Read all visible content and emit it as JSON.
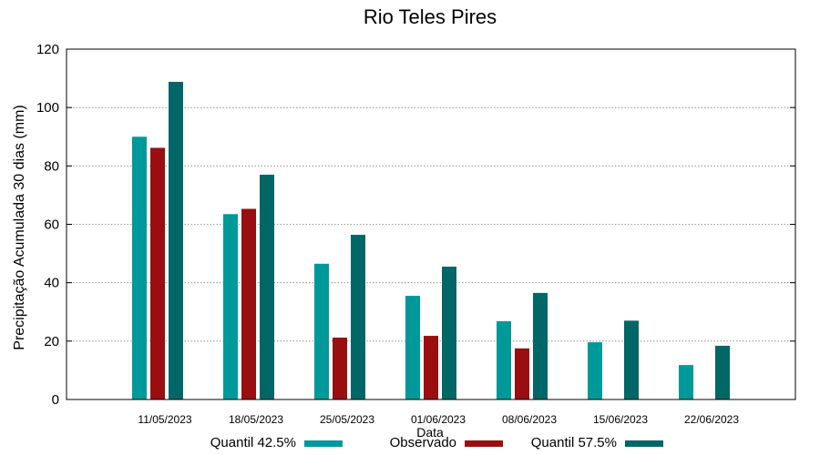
{
  "chart_data": {
    "type": "bar",
    "title": "Rio Teles Pires",
    "xlabel": "Data",
    "ylabel": "Precipitação Acumulada 30 dias (mm)",
    "ylim": [
      0,
      120
    ],
    "yticks": [
      0,
      20,
      40,
      60,
      80,
      100,
      120
    ],
    "grid": true,
    "legend_position": "bottom",
    "categories": [
      "11/05/2023",
      "18/05/2023",
      "25/05/2023",
      "01/06/2023",
      "08/06/2023",
      "15/06/2023",
      "22/06/2023"
    ],
    "series": [
      {
        "name": "Quantil 42.5%",
        "color": "#009999",
        "values": [
          90,
          63.5,
          46.5,
          35.5,
          26.8,
          19.6,
          11.8
        ]
      },
      {
        "name": "Observado",
        "color": "#990f0f",
        "values": [
          86.2,
          65.3,
          21.2,
          21.8,
          17.5,
          null,
          null
        ]
      },
      {
        "name": "Quantil 57.5%",
        "color": "#006666",
        "values": [
          108.8,
          77,
          56.4,
          45.5,
          36.5,
          27,
          18.4
        ]
      }
    ]
  }
}
